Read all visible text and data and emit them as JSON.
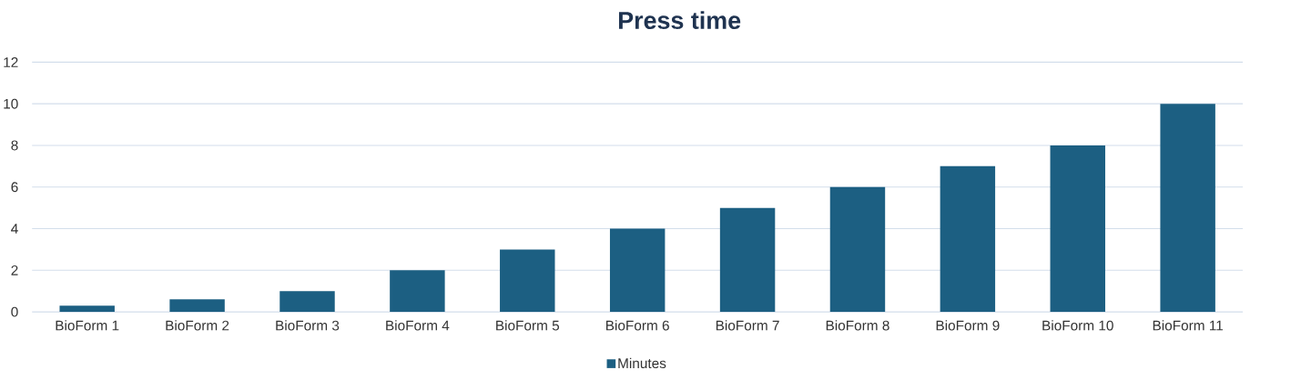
{
  "chart_data": {
    "type": "bar",
    "title": "Press time",
    "categories": [
      "BioForm 1",
      "BioForm 2",
      "BioForm 3",
      "BioForm 4",
      "BioForm 5",
      "BioForm 6",
      "BioForm 7",
      "BioForm 8",
      "BioForm 9",
      "BioForm 10",
      "BioForm 11"
    ],
    "series": [
      {
        "name": "Minutes",
        "color": "#1c5f82",
        "values": [
          0.3,
          0.6,
          1,
          2,
          3,
          4,
          5,
          6,
          7,
          8,
          10
        ]
      }
    ],
    "ylim": [
      0,
      12
    ],
    "yticks": [
      0,
      2,
      4,
      6,
      8,
      10,
      12
    ],
    "grid": "y",
    "legend": "bottom"
  }
}
